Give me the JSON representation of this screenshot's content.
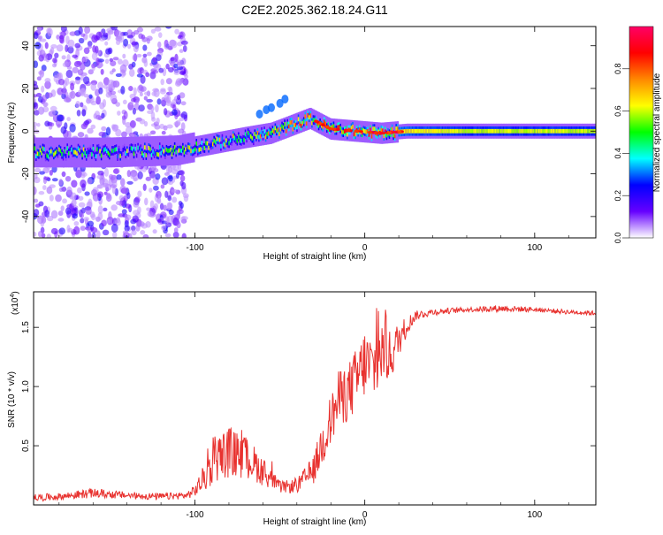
{
  "title": "C2E2.2025.362.18.24.G11",
  "chart_data": [
    {
      "type": "heatmap",
      "name": "spectrogram",
      "xlabel": "Height of straight line (km)",
      "ylabel": "Frequency (Hz)",
      "xlim": [
        -195,
        136
      ],
      "ylim": [
        -50,
        49
      ],
      "xticks": [
        -100,
        0,
        100
      ],
      "xtick_labels": [
        "-100",
        "0",
        "100"
      ],
      "yticks": [
        -40,
        -20,
        0,
        20,
        40
      ],
      "ytick_labels": [
        "-40",
        "-20",
        "0",
        "20",
        "40"
      ],
      "colorbar": {
        "label": "Normalized spectral amplitude",
        "range": [
          0,
          1
        ],
        "ticks": [
          0.0,
          0.2,
          0.4,
          0.6,
          0.8
        ],
        "tick_labels": [
          "0.0",
          "0.2",
          "0.4",
          "0.6",
          "0.8"
        ],
        "stops": [
          "#ffffff",
          "#6600ff",
          "#0000ff",
          "#00ffff",
          "#00ff00",
          "#ffff00",
          "#ff8800",
          "#ff0000",
          "#ff0066"
        ]
      },
      "ridge": [
        {
          "x": -195,
          "f": -10,
          "amp": 0.45
        },
        {
          "x": -150,
          "f": -10,
          "amp": 0.4
        },
        {
          "x": -110,
          "f": -9,
          "amp": 0.42
        },
        {
          "x": -90,
          "f": -6,
          "amp": 0.45
        },
        {
          "x": -70,
          "f": -3,
          "amp": 0.5
        },
        {
          "x": -55,
          "f": -1,
          "amp": 0.55
        },
        {
          "x": -45,
          "f": 2,
          "amp": 0.6
        },
        {
          "x": -32,
          "f": 6,
          "amp": 0.65
        },
        {
          "x": -20,
          "f": 1,
          "amp": 0.75
        },
        {
          "x": -5,
          "f": 0,
          "amp": 0.8
        },
        {
          "x": 10,
          "f": -1,
          "amp": 0.78
        },
        {
          "x": 25,
          "f": 0,
          "amp": 0.65
        },
        {
          "x": 60,
          "f": 0,
          "amp": 0.6
        },
        {
          "x": 136,
          "f": 0,
          "amp": 0.6
        }
      ],
      "noise_band": {
        "x_from": -195,
        "x_to": -105,
        "f_from": -50,
        "f_to": 49
      }
    },
    {
      "type": "line",
      "name": "snr",
      "xlabel": "Height of straight line (km)",
      "ylabel": "SNR (10 * v/v)",
      "scale_label": "(x10",
      "scale_exp": "4",
      "scale_close": ")",
      "xlim": [
        -195,
        136
      ],
      "ylim": [
        0,
        1.8
      ],
      "xticks": [
        -100,
        0,
        100
      ],
      "xtick_labels": [
        "-100",
        "0",
        "100"
      ],
      "yticks": [
        0.5,
        1.0,
        1.5
      ],
      "ytick_labels": [
        "0.5",
        "1.0",
        "1.5"
      ],
      "series": [
        {
          "name": "SNR",
          "color": "#e8322f",
          "x": [
            -195,
            -180,
            -160,
            -140,
            -120,
            -105,
            -100,
            -92,
            -87,
            -80,
            -75,
            -70,
            -65,
            -60,
            -55,
            -50,
            -40,
            -30,
            -25,
            -20,
            -15,
            -10,
            -5,
            0,
            5,
            10,
            15,
            20,
            25,
            30,
            40,
            60,
            80,
            100,
            120,
            136
          ],
          "y": [
            0.06,
            0.07,
            0.1,
            0.08,
            0.07,
            0.08,
            0.12,
            0.28,
            0.4,
            0.45,
            0.42,
            0.4,
            0.35,
            0.28,
            0.22,
            0.15,
            0.16,
            0.3,
            0.52,
            0.72,
            0.9,
            0.95,
            1.05,
            1.2,
            1.15,
            1.3,
            1.25,
            1.4,
            1.52,
            1.6,
            1.63,
            1.65,
            1.66,
            1.65,
            1.63,
            1.62
          ],
          "jitter": [
            0.03,
            0.03,
            0.04,
            0.03,
            0.03,
            0.03,
            0.05,
            0.15,
            0.2,
            0.22,
            0.2,
            0.18,
            0.15,
            0.12,
            0.08,
            0.05,
            0.06,
            0.12,
            0.2,
            0.22,
            0.25,
            0.25,
            0.28,
            0.3,
            0.3,
            0.28,
            0.22,
            0.15,
            0.08,
            0.04,
            0.03,
            0.02,
            0.03,
            0.02,
            0.02,
            0.02
          ]
        }
      ]
    }
  ]
}
